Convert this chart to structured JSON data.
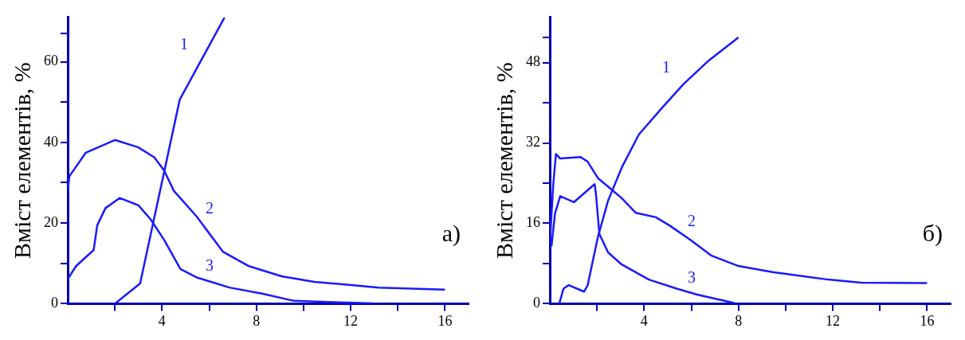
{
  "chart_data": [
    {
      "type": "line",
      "ylabel": "Вміст елементів, %",
      "xlim": [
        0,
        17
      ],
      "ylim": [
        0,
        71
      ],
      "xticks": [
        {
          "value": 2,
          "label": null
        },
        4,
        {
          "value": 6,
          "label": null
        },
        8,
        {
          "value": 10,
          "label": null
        },
        12,
        {
          "value": 14,
          "label": null
        },
        16
      ],
      "yticks": [
        0,
        {
          "value": 10,
          "label": null
        },
        20,
        {
          "value": 30,
          "label": null
        },
        40,
        {
          "value": 50,
          "label": null
        },
        60,
        {
          "value": 67,
          "label": null
        }
      ],
      "grid": false,
      "legend": false,
      "marker": "none",
      "line_style": "solid",
      "series": [
        {
          "name": "1",
          "color": "#1a1aff",
          "x": [
            2.0,
            3.07,
            4.75,
            6.65
          ],
          "values": [
            0,
            5.0,
            50.6,
            71
          ]
        },
        {
          "name": "2",
          "color": "#1a1aff",
          "x": [
            0,
            0.07,
            0.76,
            2.0,
            2.98,
            3.67,
            4.09,
            4.5,
            5.47,
            6.58,
            7.69,
            9.07,
            10.46,
            11.84,
            13.2,
            16
          ],
          "values": [
            28,
            31.6,
            37.4,
            40.6,
            38.8,
            36.3,
            33,
            28,
            21.6,
            12.9,
            9.3,
            6.8,
            5.4,
            4.7,
            4,
            3.5
          ]
        },
        {
          "name": "3",
          "color": "#1a1aff",
          "x": [
            0,
            0.35,
            1.1,
            1.25,
            1.6,
            2.2,
            3.0,
            3.53,
            4.09,
            4.78,
            5.47,
            6.86,
            8.24,
            9.6,
            11,
            12.95
          ],
          "values": [
            6.1,
            9.3,
            13.3,
            19.4,
            23.7,
            26.2,
            24.4,
            20.8,
            15.8,
            8.6,
            6.5,
            4,
            2.5,
            0.7,
            0.4,
            0.1
          ]
        }
      ],
      "annotations": [
        "а)"
      ]
    },
    {
      "type": "line",
      "ylabel": "Вміст елементів, %",
      "xlim": [
        0,
        17
      ],
      "ylim": [
        0,
        57
      ],
      "xticks": [
        {
          "value": 2,
          "label": null
        },
        4,
        {
          "value": 6,
          "label": null
        },
        8,
        {
          "value": 10,
          "label": null
        },
        12,
        {
          "value": 14,
          "label": null
        },
        16
      ],
      "yticks": [
        0,
        {
          "value": 8,
          "label": null
        },
        16,
        {
          "value": 24,
          "label": null
        },
        32,
        {
          "value": 40,
          "label": null
        },
        48,
        {
          "value": 53,
          "label": null
        }
      ],
      "grid": false,
      "legend": false,
      "marker": "none",
      "line_style": "solid",
      "series": [
        {
          "name": "1",
          "color": "#1a1aff",
          "x": [
            0.4,
            0.58,
            0.8,
            1.45,
            1.6,
            2.04,
            2.47,
            3.05,
            3.78,
            4.8,
            5.67,
            6.69,
            8
          ],
          "values": [
            0,
            3,
            3.7,
            2.4,
            3.6,
            13.3,
            20.5,
            27.1,
            33.7,
            39.2,
            43.7,
            48.2,
            53
          ]
        },
        {
          "name": "2",
          "color": "#1a1aff",
          "x": [
            0,
            0.15,
            0.26,
            0.44,
            1.3,
            1.6,
            2.04,
            3.05,
            3.64,
            4.5,
            5.1,
            5.96,
            6.84,
            8,
            9.45,
            11.8,
            13.2,
            16
          ],
          "values": [
            12,
            24,
            29.8,
            28.9,
            29.2,
            28.3,
            25,
            21,
            18.1,
            17.2,
            15.5,
            12.7,
            9.6,
            7.5,
            6.3,
            4.8,
            4.2,
            4.1
          ]
        },
        {
          "name": "3",
          "color": "#1a1aff",
          "x": [
            0.07,
            0.22,
            0.44,
            1.02,
            1.9,
            1.96,
            2.1,
            2.47,
            3.05,
            4.2,
            5.38,
            6.25,
            7.85
          ],
          "values": [
            11.4,
            18,
            21.4,
            20.2,
            23.8,
            21.7,
            13.9,
            10.2,
            7.8,
            4.8,
            3,
            1.8,
            0.1
          ]
        }
      ],
      "annotations": [
        "б)"
      ]
    }
  ]
}
